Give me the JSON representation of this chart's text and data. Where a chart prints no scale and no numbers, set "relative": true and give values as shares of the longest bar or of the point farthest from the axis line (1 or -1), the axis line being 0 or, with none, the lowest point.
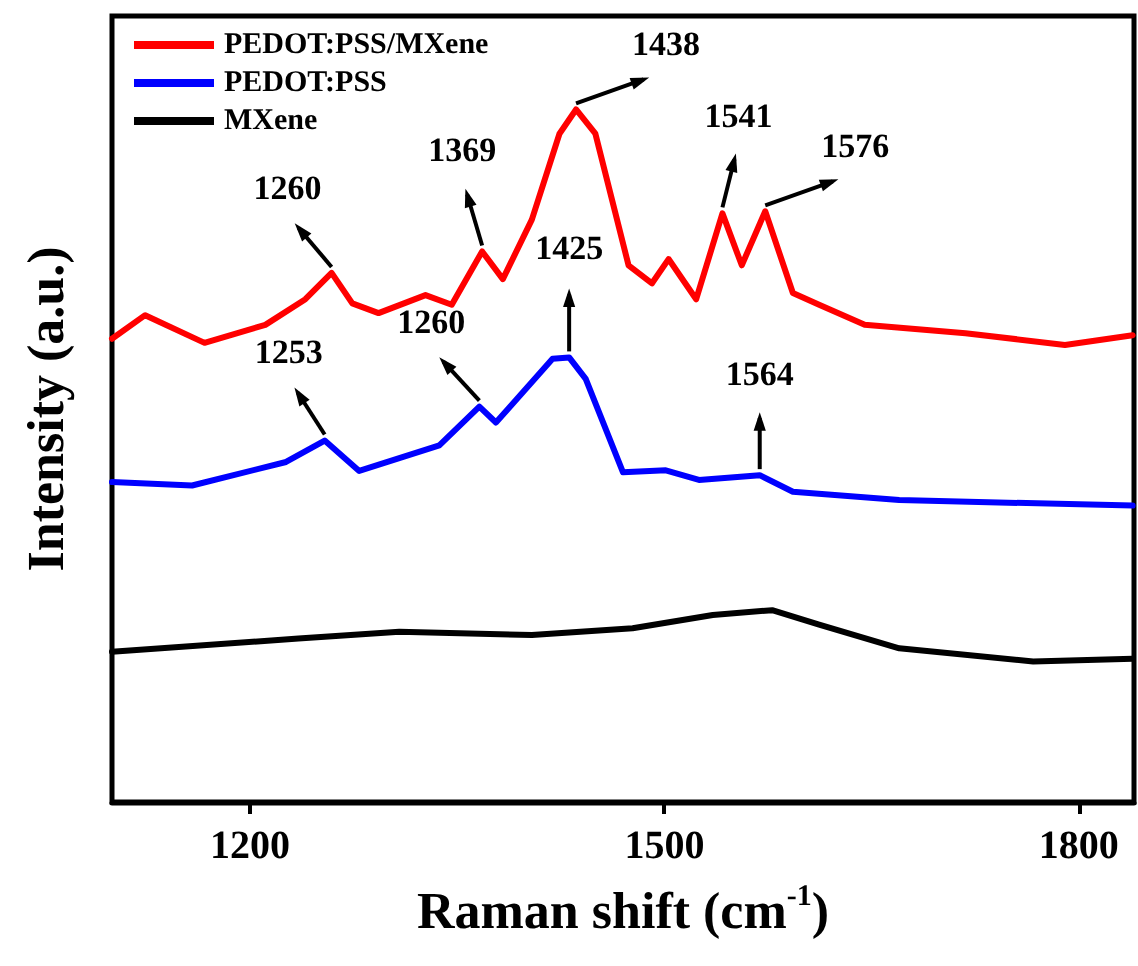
{
  "chart_data": {
    "type": "line",
    "relative": true,
    "xlabel": "Raman shift (cm$^{-1}$)",
    "ylabel": "Intensity (a.u.)",
    "xlim": [
      1100,
      1840
    ],
    "xticks": [
      1200,
      1500,
      1800
    ],
    "grid": false,
    "legend": "top left",
    "marker": "none",
    "line_style": "solid",
    "tick_labels": "x",
    "series": [
      {
        "name": "PEDOT:PSS/MXene",
        "color": "#ff0000",
        "x": [
          1100,
          1124,
          1167,
          1211,
          1240,
          1259,
          1274,
          1293,
          1327,
          1346,
          1368,
          1383,
          1404,
          1424,
          1436,
          1450,
          1462,
          1474,
          1491,
          1503,
          1523,
          1542,
          1556,
          1573,
          1593,
          1612,
          1645,
          1718,
          1790,
          1839
        ],
        "values": [
          0.669,
          0.703,
          0.663,
          0.689,
          0.726,
          0.764,
          0.72,
          0.706,
          0.732,
          0.718,
          0.795,
          0.755,
          0.841,
          0.965,
          1.0,
          0.965,
          0.87,
          0.775,
          0.749,
          0.784,
          0.726,
          0.85,
          0.775,
          0.853,
          0.735,
          0.718,
          0.689,
          0.677,
          0.66,
          0.674
        ]
      },
      {
        "name": "PEDOT:PSS",
        "color": "#0000ff",
        "x": [
          1100,
          1158,
          1226,
          1254,
          1279,
          1337,
          1366,
          1378,
          1419,
          1431,
          1443,
          1470,
          1501,
          1525,
          1569,
          1593,
          1670,
          1839
        ],
        "values": [
          0.462,
          0.457,
          0.491,
          0.522,
          0.478,
          0.515,
          0.571,
          0.548,
          0.64,
          0.642,
          0.611,
          0.476,
          0.479,
          0.465,
          0.472,
          0.448,
          0.436,
          0.428
        ]
      },
      {
        "name": "MXene",
        "color": "#000000",
        "x": [
          1100,
          1235,
          1308,
          1404,
          1477,
          1535,
          1578,
          1612,
          1670,
          1767,
          1839
        ],
        "values": [
          0.217,
          0.236,
          0.246,
          0.241,
          0.251,
          0.27,
          0.277,
          0.256,
          0.222,
          0.203,
          0.207
        ]
      }
    ],
    "annotations": [
      {
        "text": "1260",
        "x": 1259,
        "y": 0.764
      },
      {
        "text": "1369",
        "x": 1368,
        "y": 0.795
      },
      {
        "text": "1438",
        "x": 1436,
        "y": 1.0
      },
      {
        "text": "1541",
        "x": 1542,
        "y": 0.85
      },
      {
        "text": "1576",
        "x": 1573,
        "y": 0.853
      },
      {
        "text": "1253",
        "x": 1254,
        "y": 0.522
      },
      {
        "text": "1260",
        "x": 1366,
        "y": 0.571
      },
      {
        "text": "1425",
        "x": 1431,
        "y": 0.642
      },
      {
        "text": "1564",
        "x": 1569,
        "y": 0.472
      }
    ]
  }
}
